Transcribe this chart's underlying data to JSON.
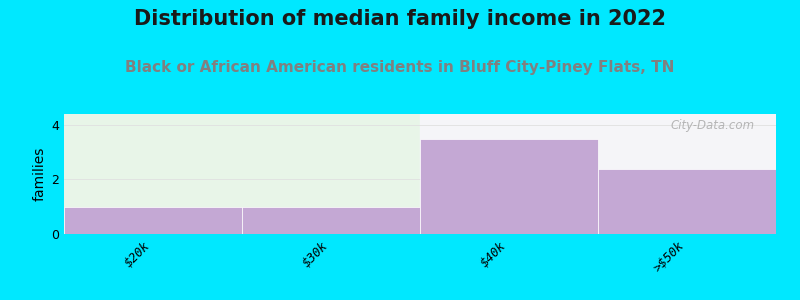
{
  "title": "Distribution of median family income in 2022",
  "subtitle": "Black or African American residents in Bluff City-Piney Flats, TN",
  "categories": [
    "$20k",
    "$30k",
    "$40k",
    ">$50k"
  ],
  "values": [
    1.0,
    1.0,
    3.5,
    2.4
  ],
  "bar_color": "#c4a8d4",
  "bar_edge_color": "#ffffff",
  "background_color": "#00e8ff",
  "plot_bg_color_left": "#e8f5e8",
  "plot_bg_color_right": "#f5f5f8",
  "ylabel": "families",
  "ylim": [
    0,
    4.4
  ],
  "yticks": [
    0,
    2,
    4
  ],
  "title_fontsize": 15,
  "subtitle_fontsize": 11,
  "subtitle_color": "#808080",
  "ylabel_fontsize": 10,
  "tick_label_fontsize": 9,
  "watermark": "City-Data.com",
  "watermark_color": "#aaaaaa",
  "grid_color": "#e0e0e0"
}
